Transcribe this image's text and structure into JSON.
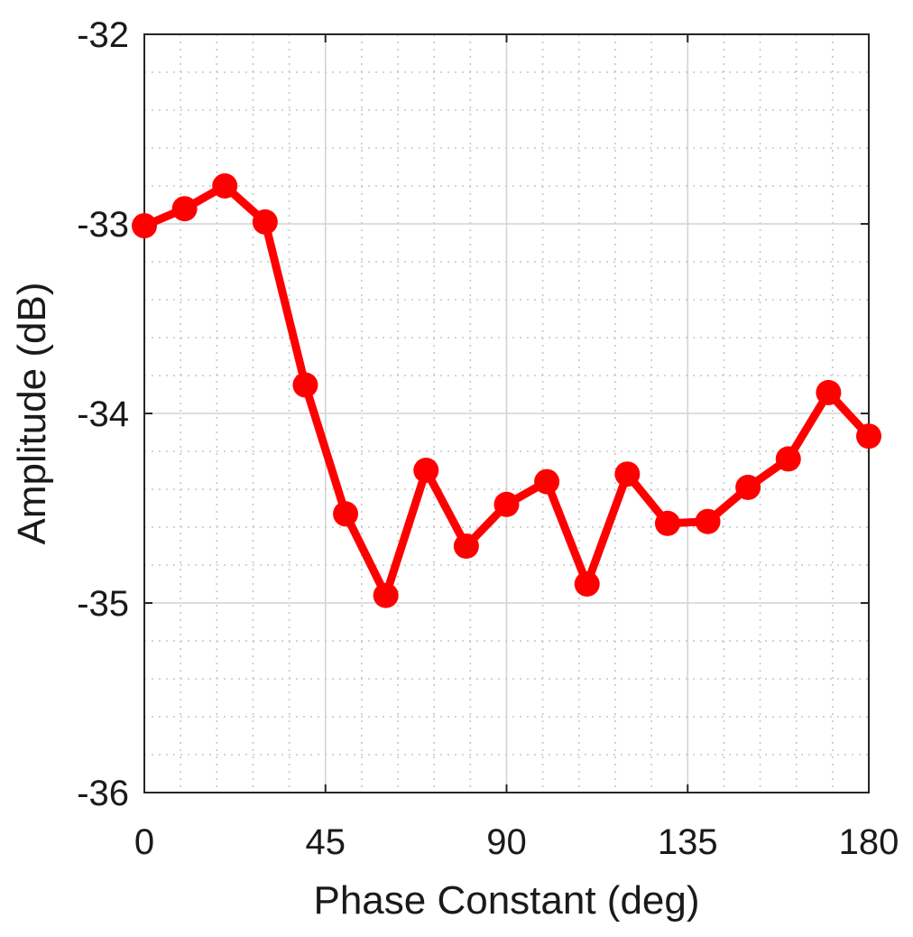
{
  "chart_data": {
    "type": "line",
    "title": "",
    "xlabel": "Phase Constant (deg)",
    "ylabel": "Amplitude (dB)",
    "xlim": [
      0,
      180
    ],
    "ylim": [
      -36,
      -32
    ],
    "x_ticks": [
      0,
      45,
      90,
      135,
      180
    ],
    "y_ticks": [
      -32,
      -33,
      -34,
      -35,
      -36
    ],
    "x_tick_labels": [
      "0",
      "45",
      "90",
      "135",
      "180"
    ],
    "y_tick_labels": [
      "-32",
      "-33",
      "-34",
      "-35",
      "-36"
    ],
    "grid": true,
    "minor_grid": true,
    "series": [
      {
        "color": "#ff0000",
        "marker": "circle",
        "x": [
          0,
          10,
          20,
          30,
          40,
          50,
          60,
          70,
          80,
          90,
          100,
          110,
          120,
          130,
          140,
          150,
          160,
          170,
          180
        ],
        "y": [
          -33.01,
          -32.92,
          -32.8,
          -32.99,
          -33.85,
          -34.53,
          -34.96,
          -34.3,
          -34.7,
          -34.48,
          -34.36,
          -34.9,
          -34.32,
          -34.58,
          -34.57,
          -34.39,
          -34.24,
          -33.89,
          -34.12
        ]
      }
    ]
  }
}
